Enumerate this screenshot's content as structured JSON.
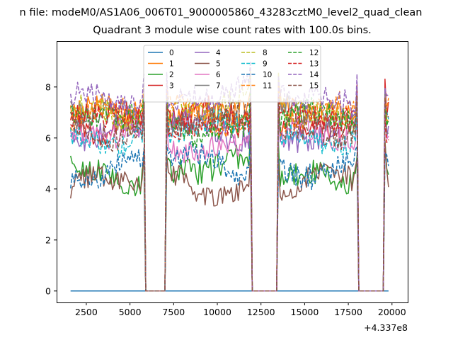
{
  "suptitle": "n file: modeM0/AS1A06_006T01_9000005860_43283cztM0_level2_quad_clean",
  "chart_data": {
    "type": "line",
    "title": "Quadrant 3 module wise count rates with 100.0s bins.",
    "xlabel": "",
    "ylabel": "",
    "x_offset_label": "+4.337e8",
    "x_offset": 433700000,
    "xlim": [
      800,
      20900
    ],
    "ylim": [
      -0.45,
      9.8
    ],
    "xticks": [
      2500,
      5000,
      7500,
      10000,
      12500,
      15000,
      17500,
      20000
    ],
    "xtick_labels": [
      "2500",
      "5000",
      "7500",
      "10000",
      "12500",
      "15000",
      "17500",
      "20000"
    ],
    "yticks": [
      0,
      2,
      4,
      6,
      8
    ],
    "ytick_labels": [
      "0",
      "2",
      "4",
      "6",
      "8"
    ],
    "grid": false,
    "legend_position": "upper center",
    "legend_columns": 4,
    "x_range": [
      1600,
      19800
    ],
    "bin_size": 100,
    "gaps": [
      [
        5900,
        7000
      ],
      [
        12000,
        13400
      ],
      [
        18100,
        19500
      ]
    ],
    "series": [
      {
        "name": "0",
        "color": "#1f77b4",
        "dash": "solid",
        "mean": 0.0,
        "flat": true
      },
      {
        "name": "1",
        "color": "#ff7f0e",
        "dash": "solid",
        "mean": 7.0
      },
      {
        "name": "2",
        "color": "#2ca02c",
        "dash": "solid",
        "mean": 4.7
      },
      {
        "name": "3",
        "color": "#d62728",
        "dash": "solid",
        "mean": 6.7
      },
      {
        "name": "4",
        "color": "#9467bd",
        "dash": "solid",
        "mean": 6.3
      },
      {
        "name": "5",
        "color": "#8c564b",
        "dash": "solid",
        "mean": 4.2
      },
      {
        "name": "6",
        "color": "#e377c2",
        "dash": "solid",
        "mean": 5.9
      },
      {
        "name": "7",
        "color": "#7f7f7f",
        "dash": "solid",
        "mean": 6.8
      },
      {
        "name": "8",
        "color": "#bcbd22",
        "dash": "dashed",
        "mean": 7.1
      },
      {
        "name": "9",
        "color": "#17becf",
        "dash": "dashed",
        "mean": 6.2
      },
      {
        "name": "10",
        "color": "#1f77b4",
        "dash": "dashed",
        "mean": 4.9
      },
      {
        "name": "11",
        "color": "#ff7f0e",
        "dash": "dashed",
        "mean": 6.9
      },
      {
        "name": "12",
        "color": "#2ca02c",
        "dash": "dashed",
        "mean": 6.6
      },
      {
        "name": "13",
        "color": "#d62728",
        "dash": "dashed",
        "mean": 6.7
      },
      {
        "name": "14",
        "color": "#9467bd",
        "dash": "dashed",
        "mean": 7.6
      },
      {
        "name": "15",
        "color": "#8c564b",
        "dash": "dashed",
        "mean": 6.5
      }
    ]
  }
}
